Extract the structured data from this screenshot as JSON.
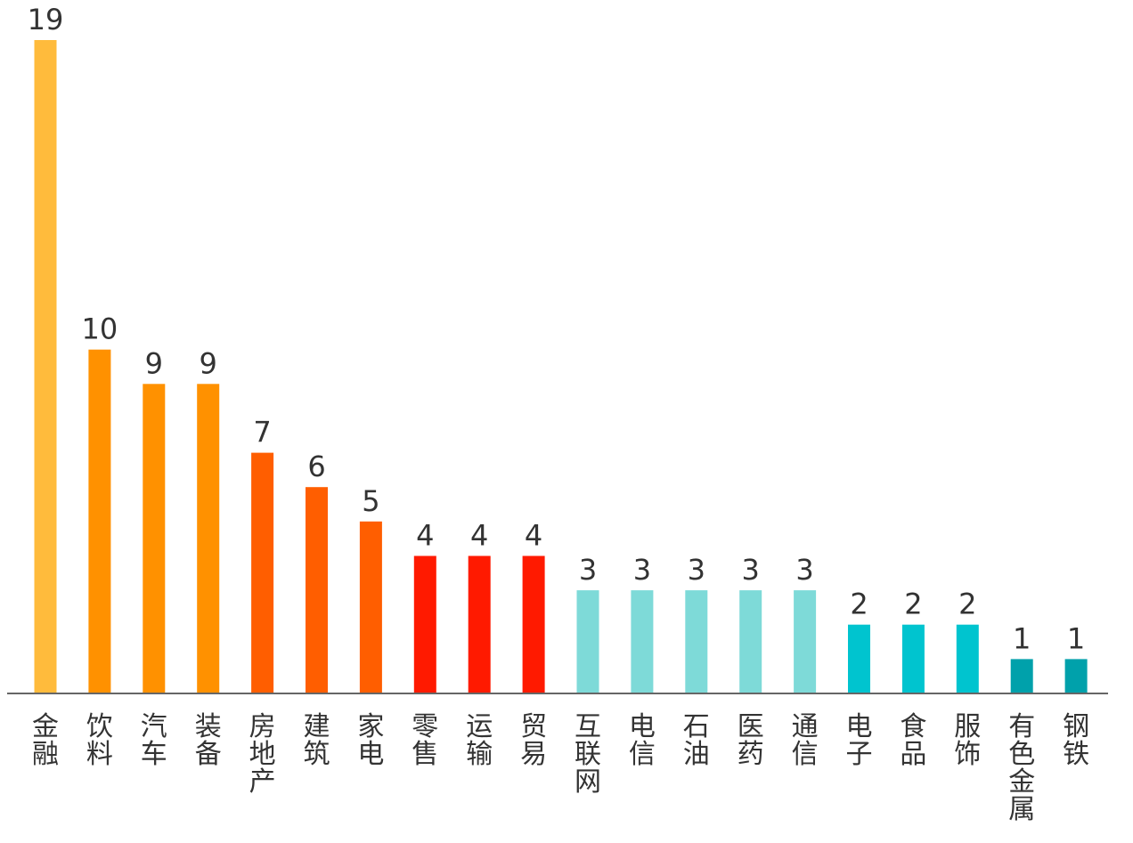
{
  "chart_data": {
    "type": "bar",
    "title": "",
    "xlabel": "",
    "ylabel": "",
    "ylim": [
      0,
      19
    ],
    "grid": false,
    "legend": "none",
    "categories": [
      "金融",
      "饮料",
      "汽车",
      "装备",
      "房地产",
      "建筑",
      "家电",
      "零售",
      "运输",
      "贸易",
      "互联网",
      "电信",
      "石油",
      "医药",
      "通信",
      "电子",
      "食品",
      "服饰",
      "有色金属",
      "钢铁"
    ],
    "values": [
      19,
      10,
      9,
      9,
      7,
      6,
      5,
      4,
      4,
      4,
      3,
      3,
      3,
      3,
      3,
      2,
      2,
      2,
      1,
      1
    ],
    "colors": [
      "#FFBB3C",
      "#FF9100",
      "#FF9100",
      "#FF9100",
      "#FF5E00",
      "#FF5E00",
      "#FF5E00",
      "#FF1A00",
      "#FF1A00",
      "#FF1A00",
      "#7EDAD8",
      "#7EDAD8",
      "#7EDAD8",
      "#7EDAD8",
      "#7EDAD8",
      "#00C4CF",
      "#00C4CF",
      "#00C4CF",
      "#00A1AB",
      "#00A1AB"
    ],
    "axis_color": "#666666"
  }
}
